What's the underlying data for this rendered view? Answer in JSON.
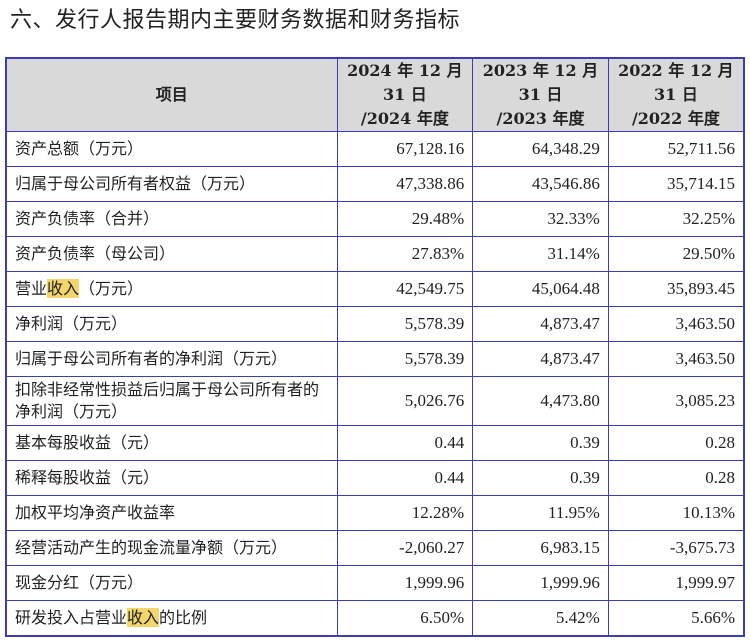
{
  "title": "六、发行人报告期内主要财务数据和财务指标",
  "headers": {
    "item": "项目",
    "y2024": [
      "2024 年 12 月",
      "31 日",
      "/2024 年度"
    ],
    "y2023": [
      "2023 年 12 月",
      "31 日",
      "/2023 年度"
    ],
    "y2022": [
      "2022 年 12 月",
      "31 日",
      "/2022 年度"
    ]
  },
  "rows": [
    {
      "label": [
        "资产总额（万元）",
        "",
        ""
      ],
      "values": [
        "67,128.16",
        "64,348.29",
        "52,711.56"
      ]
    },
    {
      "label": [
        "归属于母公司所有者权益（万元）",
        "",
        ""
      ],
      "values": [
        "47,338.86",
        "43,546.86",
        "35,714.15"
      ]
    },
    {
      "label": [
        "资产负债率（合并）",
        "",
        ""
      ],
      "values": [
        "29.48%",
        "32.33%",
        "32.25%"
      ]
    },
    {
      "label": [
        "资产负债率（母公司）",
        "",
        ""
      ],
      "values": [
        "27.83%",
        "31.14%",
        "29.50%"
      ]
    },
    {
      "label": [
        "营业",
        "收入",
        "（万元）"
      ],
      "values": [
        "42,549.75",
        "45,064.48",
        "35,893.45"
      ]
    },
    {
      "label": [
        "净利润（万元）",
        "",
        ""
      ],
      "values": [
        "5,578.39",
        "4,873.47",
        "3,463.50"
      ]
    },
    {
      "label": [
        "归属于母公司所有者的净利润（万元）",
        "",
        ""
      ],
      "values": [
        "5,578.39",
        "4,873.47",
        "3,463.50"
      ]
    },
    {
      "label": [
        "扣除非经常性损益后归属于母公司所有者的净利润（万元）",
        "",
        ""
      ],
      "values": [
        "5,026.76",
        "4,473.80",
        "3,085.23"
      ]
    },
    {
      "label": [
        "基本每股收益（元）",
        "",
        ""
      ],
      "values": [
        "0.44",
        "0.39",
        "0.28"
      ]
    },
    {
      "label": [
        "稀释每股收益（元）",
        "",
        ""
      ],
      "values": [
        "0.44",
        "0.39",
        "0.28"
      ]
    },
    {
      "label": [
        "加权平均净资产收益率",
        "",
        ""
      ],
      "values": [
        "12.28%",
        "11.95%",
        "10.13%"
      ]
    },
    {
      "label": [
        "经营活动产生的现金流量净额（万元）",
        "",
        ""
      ],
      "values": [
        "-2,060.27",
        "6,983.15",
        "-3,675.73"
      ]
    },
    {
      "label": [
        "现金分红（万元）",
        "",
        ""
      ],
      "values": [
        "1,999.96",
        "1,999.96",
        "1,999.97"
      ]
    },
    {
      "label": [
        "研发投入占营业",
        "收入",
        "的比例"
      ],
      "values": [
        "6.50%",
        "5.42%",
        "5.66%"
      ]
    }
  ],
  "colors": {
    "border": "#3d3db0",
    "header_bg": "#d9d9d9",
    "highlight": "#f2d56b"
  }
}
